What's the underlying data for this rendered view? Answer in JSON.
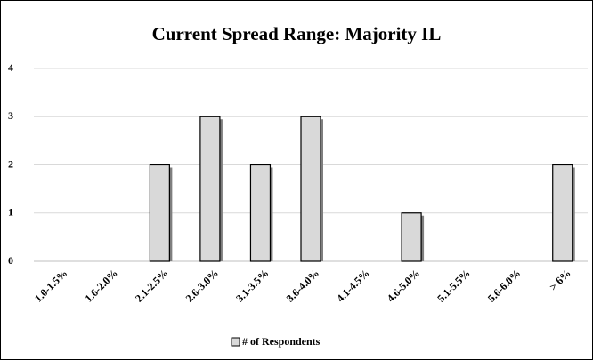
{
  "chart_data": {
    "type": "bar",
    "title": "Current Spread Range: Majority IL",
    "categories": [
      "1.0-1.5%",
      "1.6-2.0%",
      "2.1-2.5%",
      "2.6-3.0%",
      "3.1-3.5%",
      "3.6-4.0%",
      "4.1-4.5%",
      "4.6-5.0%",
      "5.1-5.5%",
      "5.6-6.0%",
      "> 6%"
    ],
    "series": [
      {
        "name": "# of Respondents",
        "color": "#d9d9d9",
        "values": [
          0,
          0,
          2,
          3,
          2,
          3,
          0,
          1,
          0,
          0,
          2
        ]
      }
    ],
    "ylim": [
      0,
      4
    ],
    "yticks": [
      0,
      1,
      2,
      3,
      4
    ],
    "grid": true,
    "legend": "bottom"
  }
}
